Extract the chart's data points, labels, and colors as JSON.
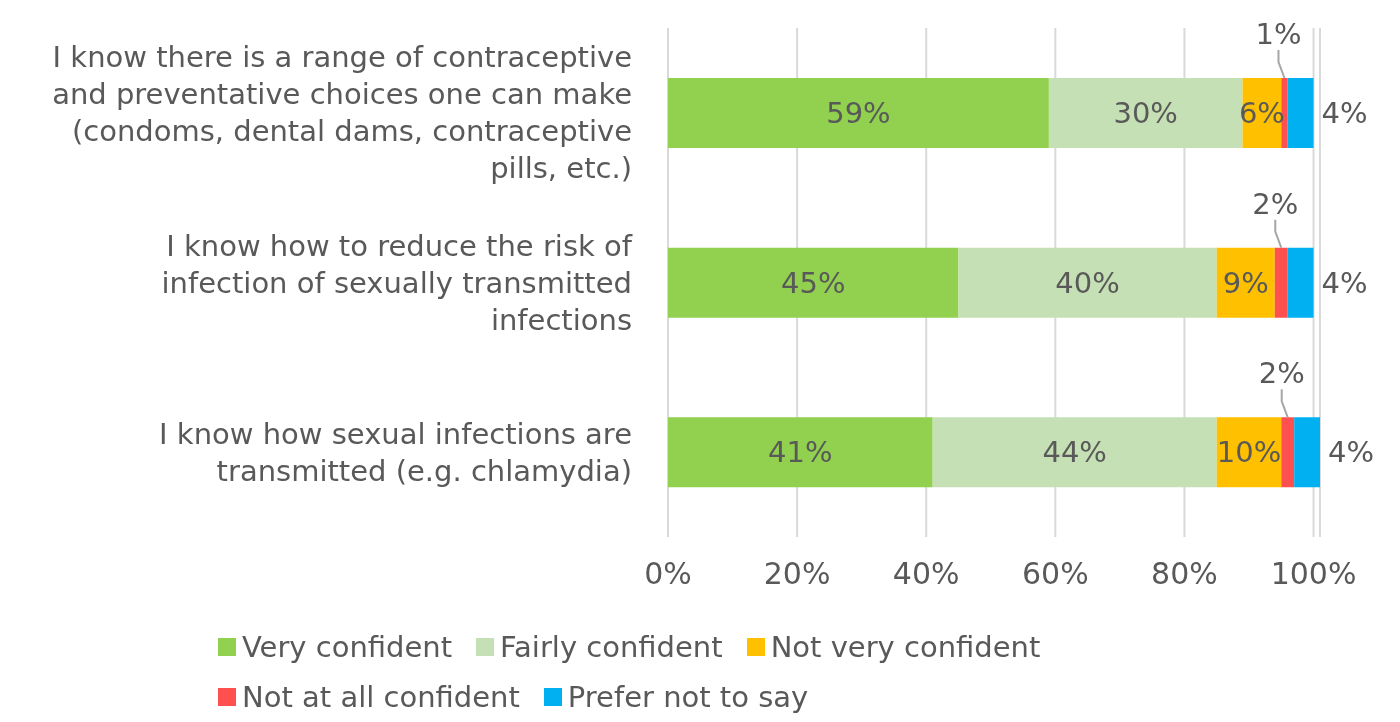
{
  "chart_data": {
    "type": "bar",
    "orientation": "horizontal",
    "stacked": true,
    "categories": [
      "I know there is a range of contraceptive and preventative choices one can make (condoms, dental dams, contraceptive pills, etc.)",
      "I know how to reduce the risk of infection of sexually transmitted infections",
      "I know how sexual infections are transmitted (e.g. chlamydia)"
    ],
    "series": [
      {
        "name": "Very confident",
        "color": "#92d050",
        "values": [
          59,
          45,
          41
        ],
        "value_labels": [
          "59%",
          "45%",
          "41%"
        ]
      },
      {
        "name": "Fairly confident",
        "color": "#c5e0b4",
        "values": [
          30,
          40,
          44
        ],
        "value_labels": [
          "30%",
          "40%",
          "44%"
        ]
      },
      {
        "name": "Not very confident",
        "color": "#ffc000",
        "values": [
          6,
          9,
          10
        ],
        "value_labels": [
          "6%",
          "9%",
          "10%"
        ]
      },
      {
        "name": "Not at all confident",
        "color": "#ff5050",
        "values": [
          1,
          2,
          2
        ],
        "value_labels": [
          "1%",
          "2%",
          "2%"
        ]
      },
      {
        "name": "Prefer not to say",
        "color": "#00b0f0",
        "values": [
          4,
          4,
          4
        ],
        "value_labels": [
          "4%",
          "4%",
          "4%"
        ]
      }
    ],
    "xlim": [
      0,
      101
    ],
    "xticks": [
      {
        "value": 0,
        "label": "0%"
      },
      {
        "value": 20,
        "label": "20%"
      },
      {
        "value": 40,
        "label": "40%"
      },
      {
        "value": 60,
        "label": "60%"
      },
      {
        "value": 80,
        "label": "80%"
      },
      {
        "value": 100,
        "label": "100%"
      }
    ],
    "grid": "x",
    "legend": "bottom"
  }
}
